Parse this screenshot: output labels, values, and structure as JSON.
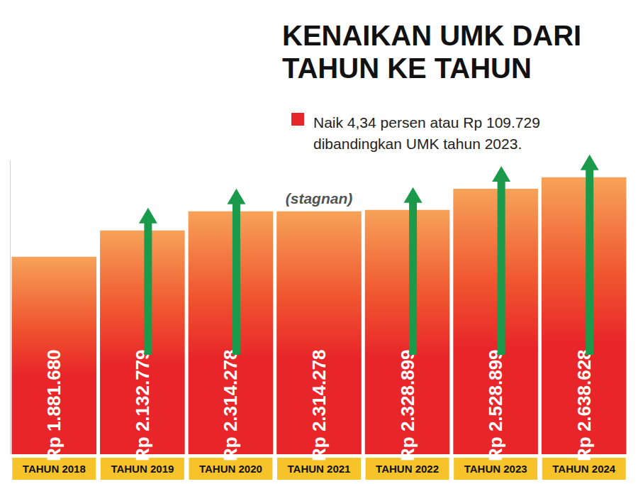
{
  "chart_data": {
    "type": "bar",
    "title": "KENAIKAN UMK DARI TAHUN KE TAHUN",
    "subtitle": "Naik 4,34 persen atau Rp 109.729 dibandingkan UMK tahun 2023.",
    "annotations": [
      {
        "text": "(stagnan)",
        "category": "TAHUN 2021"
      }
    ],
    "categories": [
      "TAHUN 2018",
      "TAHUN 2019",
      "TAHUN 2020",
      "TAHUN 2021",
      "TAHUN 2022",
      "TAHUN 2023",
      "TAHUN 2024"
    ],
    "values": [
      1881680,
      2132779,
      2314278,
      2314278,
      2328899,
      2528899,
      2638628
    ],
    "value_labels": [
      "Rp 1.881.680",
      "Rp 2.132.779",
      "Rp 2.314.278",
      "Rp 2.314.278",
      "Rp 2.328.899",
      "Rp 2.528.899",
      "Rp 2.638.628"
    ],
    "color": "#e8262a",
    "ylim": [
      0,
      2800000
    ],
    "data_labels": true,
    "tick_labels": "x",
    "grid": false
  }
}
